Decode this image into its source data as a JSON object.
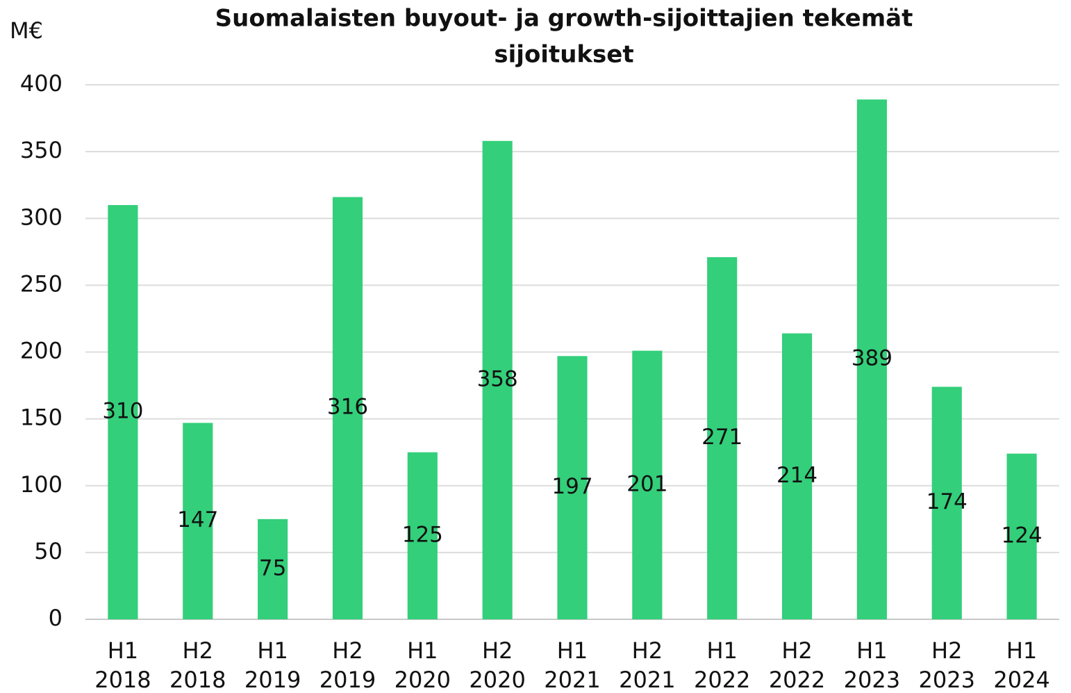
{
  "chart_data": {
    "type": "bar",
    "title": [
      "Suomalaisten buyout- ja growth-sijoittajien tekemät",
      "sijoitukset"
    ],
    "ylabel": "M€",
    "categories": [
      [
        "H1",
        "2018"
      ],
      [
        "H2",
        "2018"
      ],
      [
        "H1",
        "2019"
      ],
      [
        "H2",
        "2019"
      ],
      [
        "H1",
        "2020"
      ],
      [
        "H2",
        "2020"
      ],
      [
        "H1",
        "2021"
      ],
      [
        "H2",
        "2021"
      ],
      [
        "H1",
        "2022"
      ],
      [
        "H2",
        "2022"
      ],
      [
        "H1",
        "2023"
      ],
      [
        "H2",
        "2023"
      ],
      [
        "H1",
        "2024"
      ]
    ],
    "values": [
      310,
      147,
      75,
      316,
      125,
      358,
      197,
      201,
      271,
      214,
      389,
      174,
      124
    ],
    "color": "#33cf7a",
    "ylim": [
      0,
      400
    ],
    "yticks": [
      0,
      50,
      100,
      150,
      200,
      250,
      300,
      350,
      400
    ],
    "grid": true
  }
}
